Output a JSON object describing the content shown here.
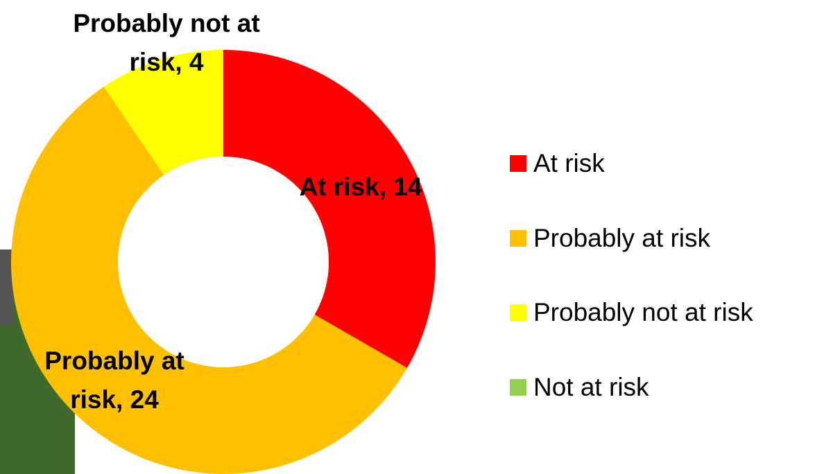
{
  "chart_data": {
    "type": "donut",
    "categories": [
      "At risk",
      "Probably at risk",
      "Probably not at risk",
      "Not at risk"
    ],
    "values": [
      14,
      24,
      4,
      0
    ],
    "value_labels": [
      "At risk, 14",
      "Probably at risk, 24",
      "Probably not at risk, 4",
      null
    ],
    "colors": [
      "#ff0000",
      "#ffc000",
      "#ffff00",
      "#92d050"
    ],
    "legend": "right"
  }
}
